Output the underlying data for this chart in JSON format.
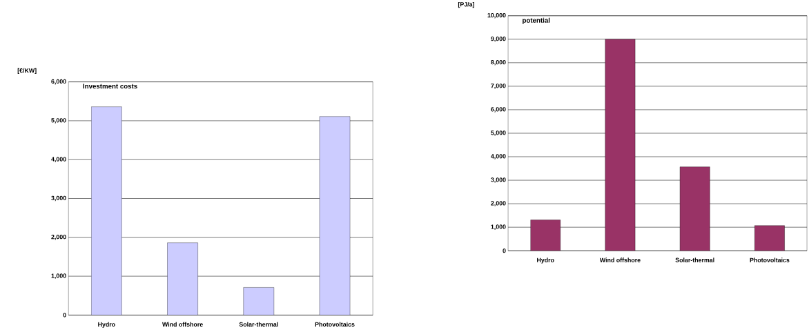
{
  "chart_data": [
    {
      "type": "bar",
      "title": "Investment costs",
      "ylabel": "[€/KW]",
      "categories": [
        "Hydro",
        "Wind offshore",
        "Solar-thermal",
        "Photovoltaics"
      ],
      "values": [
        5360,
        1860,
        710,
        5110
      ],
      "color": "#ccccff",
      "ylim": [
        0,
        6000
      ],
      "yticks": [
        0,
        {
          "value": 1000,
          "label": "1,000"
        },
        {
          "value": 2000,
          "label": "2,000"
        },
        {
          "value": 3000,
          "label": "3,000"
        },
        {
          "value": 4000,
          "label": "4,000"
        },
        {
          "value": 5000,
          "label": "5,000"
        },
        {
          "value": 6000,
          "label": "6,000"
        }
      ],
      "grid": "y"
    },
    {
      "type": "bar",
      "title": "potential",
      "ylabel": "[PJ/a]",
      "categories": [
        "Hydro",
        "Wind offshore",
        "Solar-thermal",
        "Photovoltaics"
      ],
      "values": [
        1310,
        9000,
        3570,
        1070
      ],
      "color": "#993366",
      "ylim": [
        0,
        10000
      ],
      "yticks": [
        0,
        {
          "value": 1000,
          "label": "1,000"
        },
        {
          "value": 2000,
          "label": "2,000"
        },
        {
          "value": 3000,
          "label": "3,000"
        },
        {
          "value": 4000,
          "label": "4,000"
        },
        {
          "value": 5000,
          "label": "5,000"
        },
        {
          "value": 6000,
          "label": "6,000"
        },
        {
          "value": 7000,
          "label": "7,000"
        },
        {
          "value": 8000,
          "label": "8,000"
        },
        {
          "value": 9000,
          "label": "9,000"
        },
        {
          "value": 10000,
          "label": "10,000"
        }
      ],
      "grid": "y"
    }
  ]
}
